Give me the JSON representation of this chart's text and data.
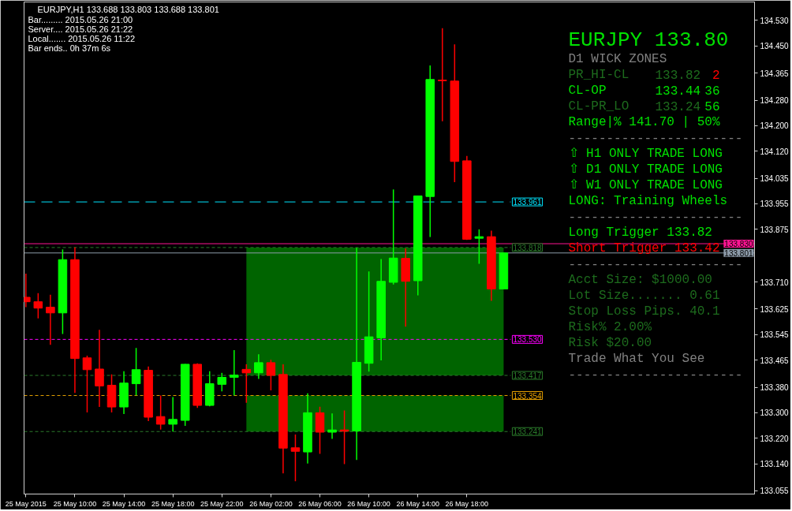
{
  "chart_data": {
    "type": "candlestick",
    "title": "EURJPY,H1  133.688 133.803 133.688 133.801",
    "x": [
      "2015-05-25T06:00",
      "2015-05-25T07:00",
      "2015-05-25T08:00",
      "2015-05-25T09:00",
      "2015-05-25T10:00",
      "2015-05-25T11:00",
      "2015-05-25T12:00",
      "2015-05-25T13:00",
      "2015-05-25T14:00",
      "2015-05-25T15:00",
      "2015-05-25T16:00",
      "2015-05-25T17:00",
      "2015-05-25T18:00",
      "2015-05-25T19:00",
      "2015-05-25T20:00",
      "2015-05-25T21:00",
      "2015-05-25T22:00",
      "2015-05-25T23:00",
      "2015-05-26T00:00",
      "2015-05-26T01:00",
      "2015-05-26T02:00",
      "2015-05-26T03:00",
      "2015-05-26T04:00",
      "2015-05-26T05:00",
      "2015-05-26T06:00",
      "2015-05-26T07:00",
      "2015-05-26T08:00",
      "2015-05-26T09:00",
      "2015-05-26T10:00",
      "2015-05-26T11:00",
      "2015-05-26T12:00",
      "2015-05-26T13:00",
      "2015-05-26T14:00",
      "2015-05-26T15:00",
      "2015-05-26T16:00",
      "2015-05-26T17:00",
      "2015-05-26T18:00",
      "2015-05-26T19:00",
      "2015-05-26T20:00",
      "2015-05-26T21:00"
    ],
    "ohlc": [
      [
        133.662,
        133.736,
        133.631,
        133.648
      ],
      [
        133.648,
        133.675,
        133.596,
        133.628
      ],
      [
        133.631,
        133.67,
        133.513,
        133.613
      ],
      [
        133.613,
        133.812,
        133.547,
        133.78
      ],
      [
        133.78,
        133.819,
        133.362,
        133.47
      ],
      [
        133.472,
        133.479,
        133.301,
        133.435
      ],
      [
        133.437,
        133.56,
        133.318,
        133.384
      ],
      [
        133.386,
        133.42,
        133.301,
        133.318
      ],
      [
        133.318,
        133.43,
        133.296,
        133.393
      ],
      [
        133.391,
        133.503,
        133.354,
        133.435
      ],
      [
        133.433,
        133.445,
        133.274,
        133.286
      ],
      [
        133.288,
        133.354,
        133.247,
        133.264
      ],
      [
        133.264,
        133.349,
        133.241,
        133.279
      ],
      [
        133.276,
        133.453,
        133.259,
        133.452
      ],
      [
        133.452,
        133.455,
        133.315,
        133.323
      ],
      [
        133.323,
        133.43,
        133.32,
        133.391
      ],
      [
        133.389,
        133.425,
        133.367,
        133.411
      ],
      [
        133.411,
        133.496,
        133.354,
        133.418
      ],
      [
        133.436,
        133.452,
        133.331,
        133.425
      ],
      [
        133.425,
        133.483,
        133.406,
        133.457
      ],
      [
        133.457,
        133.466,
        133.37,
        133.417
      ],
      [
        133.42,
        133.452,
        133.11,
        133.189
      ],
      [
        133.19,
        133.232,
        133.085,
        133.179
      ],
      [
        133.177,
        133.361,
        133.141,
        133.3
      ],
      [
        133.3,
        133.319,
        133.171,
        133.239
      ],
      [
        133.239,
        133.298,
        133.218,
        133.246
      ],
      [
        133.246,
        133.307,
        133.139,
        133.242
      ],
      [
        133.243,
        133.817,
        133.152,
        133.458
      ],
      [
        133.455,
        133.743,
        133.429,
        133.538
      ],
      [
        133.535,
        133.782,
        133.464,
        133.712
      ],
      [
        133.709,
        134.0,
        133.702,
        133.785
      ],
      [
        133.784,
        133.815,
        133.57,
        133.712
      ],
      [
        133.714,
        133.98,
        133.668,
        133.98
      ],
      [
        133.978,
        134.389,
        133.851,
        134.345
      ],
      [
        134.343,
        134.506,
        134.214,
        134.341
      ],
      [
        134.34,
        134.455,
        134.023,
        134.088
      ],
      [
        134.09,
        134.105,
        133.842,
        133.844
      ],
      [
        133.847,
        133.875,
        133.767,
        133.852
      ],
      [
        133.852,
        133.871,
        133.651,
        133.688
      ],
      [
        133.688,
        133.803,
        133.688,
        133.801
      ]
    ],
    "colors": [
      "#ff0000",
      "#ff0000",
      "#ff0000",
      "#00ff00",
      "#ff0000",
      "#ff0000",
      "#ff0000",
      "#ff0000",
      "#00ff00",
      "#00ff00",
      "#ff0000",
      "#ff0000",
      "#00ff00",
      "#00ff00",
      "#ff0000",
      "#00ff00",
      "#00ff00",
      "#00ff00",
      "#ff0000",
      "#00ff00",
      "#ff0000",
      "#ff0000",
      "#ff0000",
      "#00ff00",
      "#ff0000",
      "#00ff00",
      "#ff0000",
      "#00ff00",
      "#00ff00",
      "#00ff00",
      "#00ff00",
      "#ff0000",
      "#00ff00",
      "#00ff00",
      "#ff0000",
      "#ff0000",
      "#ff0000",
      "#00ff00",
      "#ff0000",
      "#00ff00"
    ],
    "bands": [
      {
        "axis": "y",
        "from": 133.417,
        "to": 133.818,
        "color": "#006400"
      },
      {
        "axis": "y",
        "from": 133.241,
        "to": 133.354,
        "color": "#006400"
      }
    ],
    "ref_lines": [
      {
        "axis": "y",
        "value": 133.961,
        "label": "133.961",
        "color": "#00e5ff",
        "line_style": "dashed"
      },
      {
        "axis": "y",
        "value": 133.83,
        "label": "133.830",
        "color": "#ff1493",
        "line_style": "solid"
      },
      {
        "axis": "y",
        "value": 133.818,
        "label": "133.818",
        "color": "#2a7a2a",
        "line_style": "dotted"
      },
      {
        "axis": "y",
        "value": 133.801,
        "label": "133.801",
        "color": "#8c9aa8",
        "line_style": "solid"
      },
      {
        "axis": "y",
        "value": 133.53,
        "label": "133.530",
        "color": "#ff00ff",
        "line_style": "dotted"
      },
      {
        "axis": "y",
        "value": 133.417,
        "label": "133.417",
        "color": "#2a7a2a",
        "line_style": "dotted"
      },
      {
        "axis": "y",
        "value": 133.354,
        "label": "133.354",
        "color": "#e6a000",
        "line_style": "dotted"
      },
      {
        "axis": "y",
        "value": 133.241,
        "label": "133.241",
        "color": "#2a7a2a",
        "line_style": "dotted"
      }
    ],
    "xlim": [
      "2015-05-25T05:51",
      "2015-05-27T17:29"
    ],
    "xticks": [
      {
        "value": "2015-05-25T06:00",
        "label": "25 May 2015"
      },
      {
        "value": "2015-05-25T10:00",
        "label": "25 May 10:00"
      },
      {
        "value": "2015-05-25T14:00",
        "label": "25 May 14:00"
      },
      {
        "value": "2015-05-25T18:00",
        "label": "25 May 18:00"
      },
      {
        "value": "2015-05-25T22:00",
        "label": "25 May 22:00"
      },
      {
        "value": "2015-05-26T02:00",
        "label": "26 May 02:00"
      },
      {
        "value": "2015-05-26T06:00",
        "label": "26 May 06:00"
      },
      {
        "value": "2015-05-26T10:00",
        "label": "26 May 10:00"
      },
      {
        "value": "2015-05-26T14:00",
        "label": "26 May 14:00"
      },
      {
        "value": "2015-05-26T18:00",
        "label": "26 May 18:00"
      }
    ],
    "ylim": [
      133.045,
      134.588
    ],
    "yticks": [
      {
        "value": 134.53,
        "label": "134.530"
      },
      {
        "value": 134.45,
        "label": "134.450"
      },
      134.365,
      {
        "value": 134.28,
        "label": "134.280"
      },
      {
        "value": 134.2,
        "label": "134.200"
      },
      {
        "value": 134.12,
        "label": "134.120"
      },
      134.035,
      133.955,
      133.875,
      {
        "value": 133.71,
        "label": "133.710"
      },
      133.625,
      133.545,
      133.465,
      {
        "value": 133.38,
        "label": "133.380"
      },
      {
        "value": 133.3,
        "label": "133.300"
      },
      {
        "value": 133.22,
        "label": "133.220"
      },
      {
        "value": 133.14,
        "label": "133.140"
      },
      133.055
    ],
    "annotations": [
      "Bar......... 2015.05.26 21:00",
      "Server.... 2015.05.26 21:22",
      "Local....... 2015.05.26 11:22",
      "Bar ends.. 0h 37m 6s",
      "EURJPY 133.80",
      "D1 WICK ZONES",
      "PR_HI-CL",
      "133.82",
      "2",
      "CL-OP",
      "133.44",
      "36",
      "CL-PR_LO",
      "133.24",
      "56",
      "Range|% 141.70 | 50%",
      "-----------------------",
      "⇧ H1 ONLY TRADE LONG",
      "⇧ D1 ONLY TRADE LONG",
      "⇧ W1 ONLY TRADE LONG",
      "LONG: Training Wheels",
      "-----------------------",
      "Long Trigger  133.82",
      "Short Trigger 133.42",
      "-----------------------",
      "Acct Size: $1000.00",
      "Lot Size....... 0.61",
      "Stop Loss Pips. 40.1",
      "Risk% 2.00%",
      "Risk $20.00",
      "Trade What You See",
      "-----------------------"
    ]
  }
}
